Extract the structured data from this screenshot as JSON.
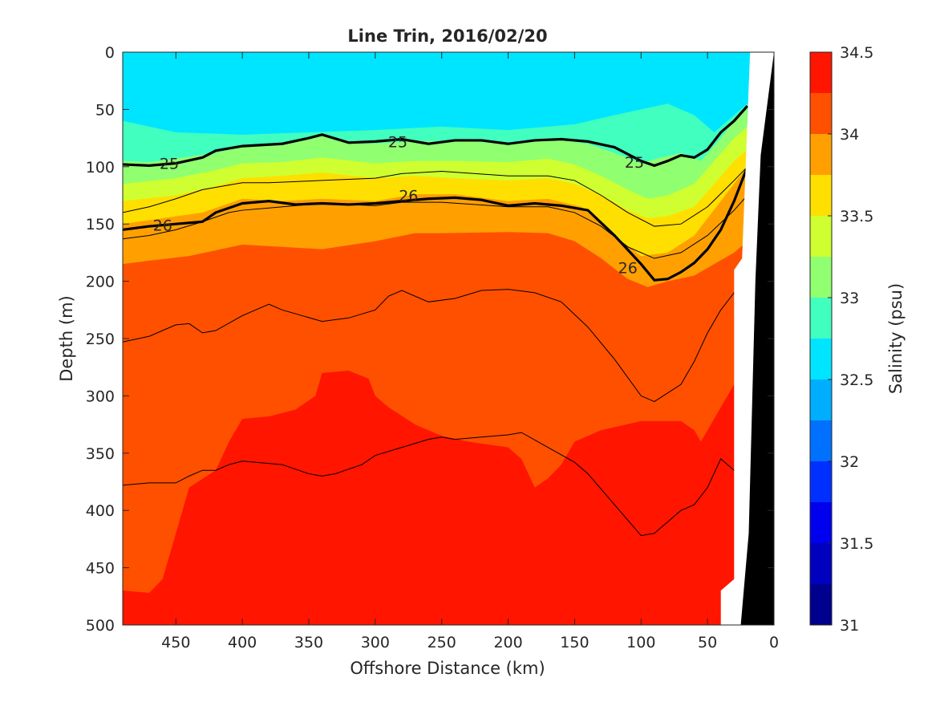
{
  "chart_data": {
    "type": "heatmap",
    "title": "Line Trin, 2016/02/20",
    "xlabel": "Offshore Distance (km)",
    "ylabel": "Depth (m)",
    "colorbar_label": "Salinity (psu)",
    "xlim": [
      490,
      0
    ],
    "ylim": [
      0,
      500
    ],
    "x_ticks": [
      450,
      400,
      350,
      300,
      250,
      200,
      150,
      100,
      50,
      0
    ],
    "y_ticks": [
      0,
      50,
      100,
      150,
      200,
      250,
      300,
      350,
      400,
      450,
      500
    ],
    "colorbar_range": [
      31,
      34.5
    ],
    "colorbar_ticks": [
      31,
      31.5,
      32,
      32.5,
      33,
      33.5,
      34,
      34.5
    ],
    "colorbar_levels": [
      {
        "from": 31.0,
        "to": 31.25,
        "color": "#00008f"
      },
      {
        "from": 31.25,
        "to": 31.5,
        "color": "#0000bf"
      },
      {
        "from": 31.5,
        "to": 31.75,
        "color": "#0000ef"
      },
      {
        "from": 31.75,
        "to": 32.0,
        "color": "#0030ff"
      },
      {
        "from": 32.0,
        "to": 32.25,
        "color": "#0070ff"
      },
      {
        "from": 32.25,
        "to": 32.5,
        "color": "#00aeff"
      },
      {
        "from": 32.5,
        "to": 32.75,
        "color": "#00e5ff"
      },
      {
        "from": 32.75,
        "to": 33.0,
        "color": "#40ffbf"
      },
      {
        "from": 33.0,
        "to": 33.25,
        "color": "#90ff70"
      },
      {
        "from": 33.25,
        "to": 33.5,
        "color": "#cfff30"
      },
      {
        "from": 33.5,
        "to": 33.75,
        "color": "#ffdf00"
      },
      {
        "from": 33.75,
        "to": 34.0,
        "color": "#ffa000"
      },
      {
        "from": 34.0,
        "to": 34.25,
        "color": "#ff5000"
      },
      {
        "from": 34.25,
        "to": 34.5,
        "color": "#ff1500"
      }
    ],
    "salinity_bands": [
      {
        "level": 32.75,
        "color": "#40ffbf",
        "boundary": [
          [
            490,
            60
          ],
          [
            450,
            70
          ],
          [
            400,
            72
          ],
          [
            350,
            70
          ],
          [
            300,
            68
          ],
          [
            250,
            65
          ],
          [
            200,
            68
          ],
          [
            150,
            63
          ],
          [
            120,
            55
          ],
          [
            100,
            50
          ],
          [
            80,
            45
          ],
          [
            60,
            55
          ],
          [
            45,
            70
          ],
          [
            30,
            55
          ],
          [
            20,
            45
          ]
        ]
      },
      {
        "level": 33.0,
        "color": "#90ff70",
        "boundary": [
          [
            490,
            95
          ],
          [
            470,
            96
          ],
          [
            450,
            93
          ],
          [
            420,
            88
          ],
          [
            400,
            82
          ],
          [
            370,
            80
          ],
          [
            340,
            72
          ],
          [
            310,
            80
          ],
          [
            270,
            78
          ],
          [
            240,
            77
          ],
          [
            200,
            80
          ],
          [
            170,
            75
          ],
          [
            140,
            80
          ],
          [
            120,
            88
          ],
          [
            100,
            97
          ],
          [
            85,
            92
          ],
          [
            70,
            88
          ],
          [
            55,
            95
          ],
          [
            40,
            75
          ],
          [
            30,
            60
          ],
          [
            20,
            45
          ]
        ]
      },
      {
        "level": 33.25,
        "color": "#cfff30",
        "boundary": [
          [
            490,
            115
          ],
          [
            450,
            110
          ],
          [
            420,
            103
          ],
          [
            400,
            97
          ],
          [
            370,
            96
          ],
          [
            340,
            92
          ],
          [
            300,
            97
          ],
          [
            270,
            95
          ],
          [
            240,
            95
          ],
          [
            200,
            96
          ],
          [
            170,
            93
          ],
          [
            150,
            98
          ],
          [
            130,
            108
          ],
          [
            110,
            120
          ],
          [
            95,
            128
          ],
          [
            80,
            125
          ],
          [
            60,
            115
          ],
          [
            45,
            95
          ],
          [
            30,
            75
          ],
          [
            20,
            65
          ]
        ]
      },
      {
        "level": 33.5,
        "color": "#ffdf00",
        "boundary": [
          [
            490,
            130
          ],
          [
            450,
            125
          ],
          [
            420,
            117
          ],
          [
            400,
            110
          ],
          [
            370,
            108
          ],
          [
            340,
            105
          ],
          [
            300,
            110
          ],
          [
            270,
            108
          ],
          [
            240,
            110
          ],
          [
            200,
            112
          ],
          [
            170,
            110
          ],
          [
            150,
            115
          ],
          [
            130,
            125
          ],
          [
            110,
            138
          ],
          [
            95,
            145
          ],
          [
            80,
            143
          ],
          [
            60,
            135
          ],
          [
            45,
            115
          ],
          [
            30,
            95
          ],
          [
            20,
            85
          ]
        ]
      },
      {
        "level": 33.75,
        "color": "#ffa000",
        "boundary": [
          [
            490,
            150
          ],
          [
            460,
            145
          ],
          [
            430,
            140
          ],
          [
            400,
            128
          ],
          [
            370,
            130
          ],
          [
            340,
            128
          ],
          [
            300,
            130
          ],
          [
            270,
            124
          ],
          [
            240,
            124
          ],
          [
            200,
            130
          ],
          [
            170,
            128
          ],
          [
            145,
            135
          ],
          [
            120,
            160
          ],
          [
            100,
            178
          ],
          [
            80,
            175
          ],
          [
            60,
            160
          ],
          [
            40,
            130
          ],
          [
            20,
            100
          ]
        ]
      },
      {
        "level": 34.0,
        "color": "#ff5000",
        "boundary": [
          [
            490,
            185
          ],
          [
            470,
            182
          ],
          [
            440,
            178
          ],
          [
            400,
            168
          ],
          [
            370,
            170
          ],
          [
            340,
            172
          ],
          [
            300,
            165
          ],
          [
            270,
            158
          ],
          [
            250,
            158
          ],
          [
            200,
            157
          ],
          [
            170,
            158
          ],
          [
            150,
            165
          ],
          [
            130,
            180
          ],
          [
            110,
            198
          ],
          [
            95,
            205
          ],
          [
            80,
            200
          ],
          [
            60,
            195
          ],
          [
            45,
            185
          ],
          [
            30,
            175
          ],
          [
            20,
            165
          ]
        ]
      },
      {
        "level": 34.25,
        "color": "#ff1500",
        "boundary": [
          [
            490,
            470
          ],
          [
            470,
            472
          ],
          [
            460,
            460
          ],
          [
            450,
            420
          ],
          [
            440,
            380
          ],
          [
            420,
            365
          ],
          [
            410,
            340
          ],
          [
            400,
            320
          ],
          [
            380,
            318
          ],
          [
            360,
            312
          ],
          [
            345,
            300
          ],
          [
            340,
            280
          ],
          [
            320,
            278
          ],
          [
            305,
            285
          ],
          [
            300,
            300
          ],
          [
            290,
            310
          ],
          [
            270,
            325
          ],
          [
            250,
            335
          ],
          [
            230,
            340
          ],
          [
            200,
            345
          ],
          [
            190,
            355
          ],
          [
            180,
            380
          ],
          [
            170,
            372
          ],
          [
            160,
            360
          ],
          [
            150,
            340
          ],
          [
            130,
            330
          ],
          [
            100,
            322
          ],
          [
            70,
            322
          ],
          [
            60,
            330
          ],
          [
            55,
            340
          ],
          [
            45,
            320
          ],
          [
            35,
            300
          ],
          [
            30,
            290
          ],
          [
            25,
            285
          ],
          [
            20,
            280
          ]
        ]
      }
    ],
    "isopycnals": [
      {
        "label": "25",
        "bold": true,
        "x": [
          490,
          470,
          450,
          430,
          420,
          400,
          370,
          350,
          340,
          320,
          300,
          280,
          260,
          240,
          220,
          200,
          180,
          160,
          140,
          120,
          100,
          90,
          80,
          70,
          60,
          50,
          40,
          30,
          20
        ],
        "depth": [
          98,
          99,
          97,
          92,
          86,
          82,
          80,
          75,
          72,
          79,
          78,
          76,
          80,
          77,
          77,
          80,
          77,
          76,
          78,
          83,
          95,
          99,
          95,
          90,
          92,
          85,
          70,
          60,
          47
        ],
        "label_positions": [
          [
            455,
            97
          ],
          [
            283,
            78
          ],
          [
            105,
            96
          ]
        ]
      },
      {
        "label": "26",
        "bold": true,
        "x": [
          490,
          470,
          450,
          430,
          420,
          400,
          380,
          360,
          340,
          320,
          300,
          280,
          260,
          240,
          220,
          200,
          180,
          160,
          140,
          120,
          100,
          90,
          80,
          70,
          60,
          50,
          40,
          30,
          20
        ],
        "depth": [
          155,
          152,
          150,
          148,
          140,
          132,
          130,
          133,
          132,
          133,
          132,
          130,
          128,
          127,
          129,
          134,
          132,
          134,
          138,
          160,
          185,
          199,
          198,
          192,
          184,
          172,
          155,
          130,
          100
        ],
        "label_positions": [
          [
            460,
            151
          ],
          [
            275,
            125
          ],
          [
            110,
            188
          ]
        ]
      }
    ],
    "thin_contours": [
      {
        "x": [
          490,
          470,
          450,
          440,
          430,
          420,
          410,
          400,
          370,
          350,
          340,
          330,
          310,
          300,
          280,
          260,
          250,
          240,
          220,
          200,
          190,
          170,
          150,
          140,
          120,
          100,
          90,
          80,
          70,
          60,
          50,
          40,
          30,
          25
        ],
        "depth": [
          378,
          376,
          376,
          370,
          365,
          365,
          360,
          357,
          360,
          368,
          370,
          368,
          360,
          352,
          345,
          338,
          336,
          338,
          336,
          334,
          332,
          345,
          358,
          368,
          395,
          422,
          420,
          410,
          400,
          395,
          380,
          355,
          365,
          370
        ]
      },
      {
        "x": [
          490,
          470,
          450,
          440,
          430,
          420,
          400,
          380,
          370,
          340,
          320,
          300,
          290,
          280,
          260,
          240,
          220,
          200,
          180,
          160,
          140,
          120,
          100,
          90,
          70,
          60,
          50,
          40,
          30,
          20
        ],
        "depth": [
          253,
          248,
          238,
          237,
          245,
          243,
          230,
          220,
          225,
          235,
          232,
          225,
          213,
          208,
          218,
          215,
          208,
          207,
          210,
          218,
          240,
          268,
          300,
          305,
          290,
          270,
          245,
          225,
          210,
          195
        ]
      },
      {
        "x": [
          490,
          470,
          450,
          430,
          410,
          400,
          380,
          360,
          340,
          300,
          280,
          250,
          200,
          170,
          150,
          130,
          110,
          90,
          70,
          50,
          30,
          20
        ],
        "depth": [
          140,
          135,
          128,
          120,
          116,
          114,
          114,
          113,
          112,
          110,
          106,
          104,
          108,
          108,
          112,
          125,
          140,
          152,
          150,
          135,
          112,
          100
        ]
      },
      {
        "x": [
          490,
          470,
          450,
          430,
          410,
          400,
          380,
          360,
          340,
          300,
          280,
          250,
          200,
          170,
          150,
          130,
          110,
          90,
          70,
          50,
          30,
          20
        ],
        "depth": [
          163,
          160,
          155,
          148,
          140,
          138,
          136,
          134,
          132,
          134,
          131,
          131,
          135,
          135,
          140,
          152,
          170,
          180,
          175,
          160,
          138,
          125
        ]
      }
    ],
    "land_mask_label": ""
  }
}
